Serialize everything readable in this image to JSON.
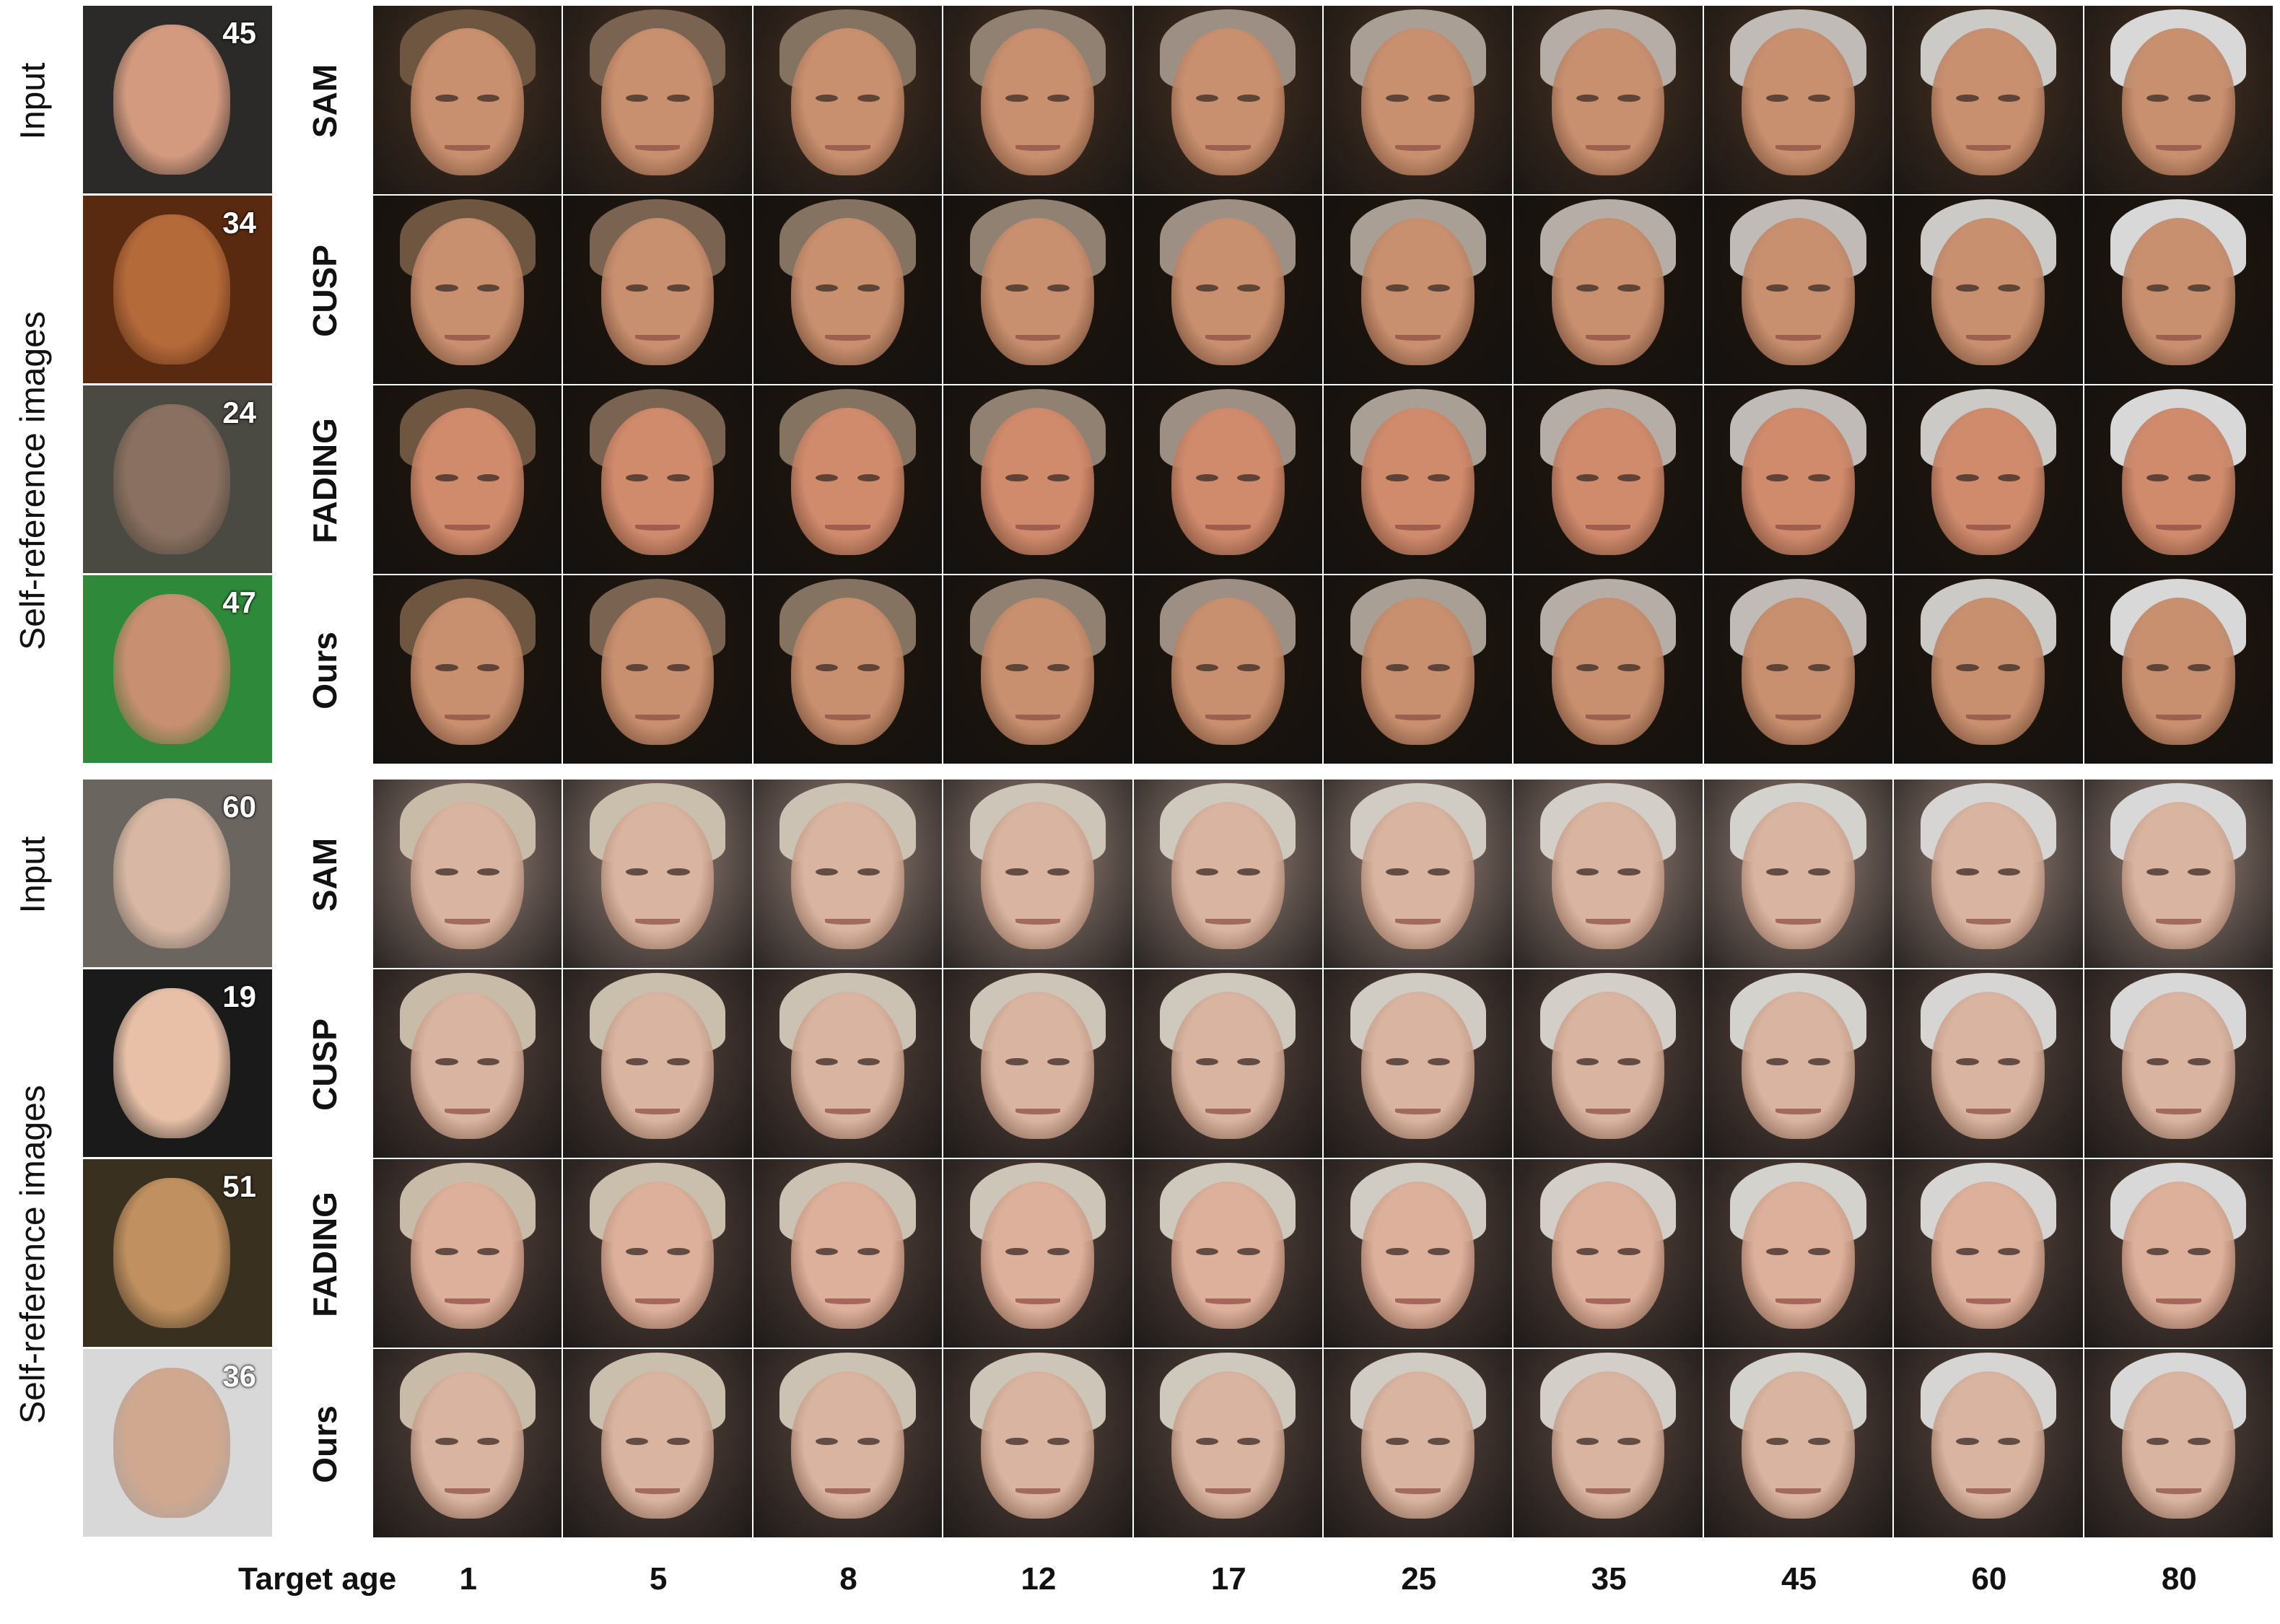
{
  "colors": {
    "man_skin": "#c9906f",
    "woman_skin": "#d9b4a0",
    "man_bg_sam": "#3b2a1e",
    "man_bg_dark": "#1d140d",
    "woman_bg_sam": "#7a6860",
    "woman_bg_dark": "#4a3a34",
    "hair_man": "#6e5640",
    "hair_woman": "#c8bca8"
  },
  "target_age_label": "Target age",
  "target_ages": [
    "1",
    "5",
    "8",
    "12",
    "17",
    "25",
    "35",
    "45",
    "60",
    "80"
  ],
  "panels": [
    {
      "input_label": "Input",
      "self_reference_label": "Self-reference images",
      "reference_ages": [
        "45",
        "34",
        "24",
        "47"
      ],
      "methods": [
        "SAM",
        "CUSP",
        "FADING",
        "Ours"
      ]
    },
    {
      "input_label": "Input",
      "self_reference_label": "Self-reference images",
      "reference_ages": [
        "60",
        "19",
        "51",
        "36"
      ],
      "methods": [
        "SAM",
        "CUSP",
        "FADING",
        "Ours"
      ]
    }
  ]
}
